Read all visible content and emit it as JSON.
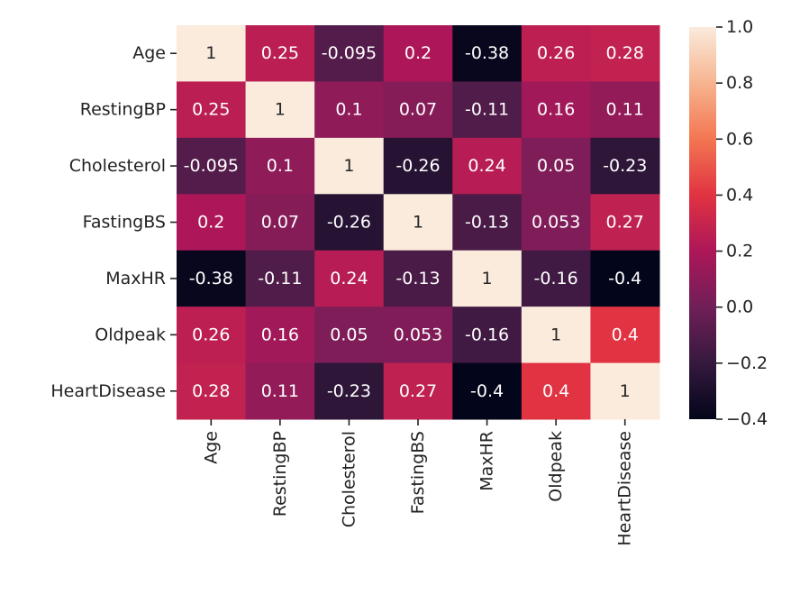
{
  "chart_data": {
    "type": "heatmap",
    "title": "",
    "xlabel": "",
    "ylabel": "",
    "x_categories": [
      "Age",
      "RestingBP",
      "Cholesterol",
      "FastingBS",
      "MaxHR",
      "Oldpeak",
      "HeartDisease"
    ],
    "y_categories": [
      "Age",
      "RestingBP",
      "Cholesterol",
      "FastingBS",
      "MaxHR",
      "Oldpeak",
      "HeartDisease"
    ],
    "matrix": [
      [
        1,
        0.25,
        -0.095,
        0.2,
        -0.38,
        0.26,
        0.28
      ],
      [
        0.25,
        1,
        0.1,
        0.07,
        -0.11,
        0.16,
        0.11
      ],
      [
        -0.095,
        0.1,
        1,
        -0.26,
        0.24,
        0.05,
        -0.23
      ],
      [
        0.2,
        0.07,
        -0.26,
        1,
        -0.13,
        0.053,
        0.27
      ],
      [
        -0.38,
        -0.11,
        0.24,
        -0.13,
        1,
        -0.16,
        -0.4
      ],
      [
        0.26,
        0.16,
        0.05,
        0.053,
        -0.16,
        1,
        0.4
      ],
      [
        0.28,
        0.11,
        -0.23,
        0.27,
        -0.4,
        0.4,
        1
      ]
    ],
    "cell_labels": [
      [
        "1",
        "0.25",
        "-0.095",
        "0.2",
        "-0.38",
        "0.26",
        "0.28"
      ],
      [
        "0.25",
        "1",
        "0.1",
        "0.07",
        "-0.11",
        "0.16",
        "0.11"
      ],
      [
        "-0.095",
        "0.1",
        "1",
        "-0.26",
        "0.24",
        "0.05",
        "-0.23"
      ],
      [
        "0.2",
        "0.07",
        "-0.26",
        "1",
        "-0.13",
        "0.053",
        "0.27"
      ],
      [
        "-0.38",
        "-0.11",
        "0.24",
        "-0.13",
        "1",
        "-0.16",
        "-0.4"
      ],
      [
        "0.26",
        "0.16",
        "0.05",
        "0.053",
        "-0.16",
        "1",
        "0.4"
      ],
      [
        "0.28",
        "0.11",
        "-0.23",
        "0.27",
        "-0.4",
        "0.4",
        "1"
      ]
    ],
    "colorbar": {
      "vmin": -0.4,
      "vmax": 1.0,
      "ticks": [
        1.0,
        0.8,
        0.6,
        0.4,
        0.2,
        0.0,
        -0.2,
        -0.4
      ],
      "tick_labels": [
        "1.0",
        "0.8",
        "0.6",
        "0.4",
        "0.2",
        "0.0",
        "−0.2",
        "−0.4"
      ],
      "colormap": "rocket",
      "colormap_stops": [
        "#03051A",
        "#35193E",
        "#701F57",
        "#AD1759",
        "#E13342",
        "#F37651",
        "#F6B48F",
        "#FAEBDD"
      ]
    }
  }
}
